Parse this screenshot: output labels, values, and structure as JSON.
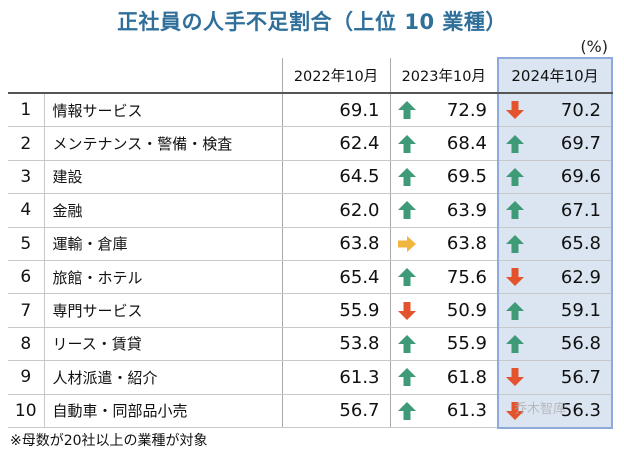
{
  "title": "正社員の人手不足割合（上位 10 業種）",
  "unit": "(%)",
  "footnote": "※母数が20社以上の業種が対象",
  "watermark": "乔木智库",
  "colors": {
    "up": "#3f9a78",
    "down": "#e3532e",
    "flat": "#f0b53c",
    "highlight": "#dbe5f1"
  },
  "chart_data": {
    "type": "table",
    "title": "正社員の人手不足割合（上位 10 業種）",
    "unit": "(%)",
    "columns": [
      "2022年10月",
      "2023年10月",
      "2024年10月"
    ],
    "rows": [
      {
        "rank": "1",
        "industry": "情報サービス",
        "values": [
          "69.1",
          "72.9",
          "70.2"
        ],
        "trend": [
          "",
          "up",
          "down"
        ]
      },
      {
        "rank": "2",
        "industry": "メンテナンス・警備・検査",
        "values": [
          "62.4",
          "68.4",
          "69.7"
        ],
        "trend": [
          "",
          "up",
          "up"
        ]
      },
      {
        "rank": "3",
        "industry": "建設",
        "values": [
          "64.5",
          "69.5",
          "69.6"
        ],
        "trend": [
          "",
          "up",
          "up"
        ]
      },
      {
        "rank": "4",
        "industry": "金融",
        "values": [
          "62.0",
          "63.9",
          "67.1"
        ],
        "trend": [
          "",
          "up",
          "up"
        ]
      },
      {
        "rank": "5",
        "industry": "運輸・倉庫",
        "values": [
          "63.8",
          "63.8",
          "65.8"
        ],
        "trend": [
          "",
          "flat",
          "up"
        ]
      },
      {
        "rank": "6",
        "industry": "旅館・ホテル",
        "values": [
          "65.4",
          "75.6",
          "62.9"
        ],
        "trend": [
          "",
          "up",
          "down"
        ]
      },
      {
        "rank": "7",
        "industry": "専門サービス",
        "values": [
          "55.9",
          "50.9",
          "59.1"
        ],
        "trend": [
          "",
          "down",
          "up"
        ]
      },
      {
        "rank": "8",
        "industry": "リース・賃貸",
        "values": [
          "53.8",
          "55.9",
          "56.8"
        ],
        "trend": [
          "",
          "up",
          "up"
        ]
      },
      {
        "rank": "9",
        "industry": "人材派遣・紹介",
        "values": [
          "61.3",
          "61.8",
          "56.7"
        ],
        "trend": [
          "",
          "up",
          "down"
        ]
      },
      {
        "rank": "10",
        "industry": "自動車・同部品小売",
        "values": [
          "56.7",
          "61.3",
          "56.3"
        ],
        "trend": [
          "",
          "up",
          "down"
        ]
      }
    ]
  }
}
